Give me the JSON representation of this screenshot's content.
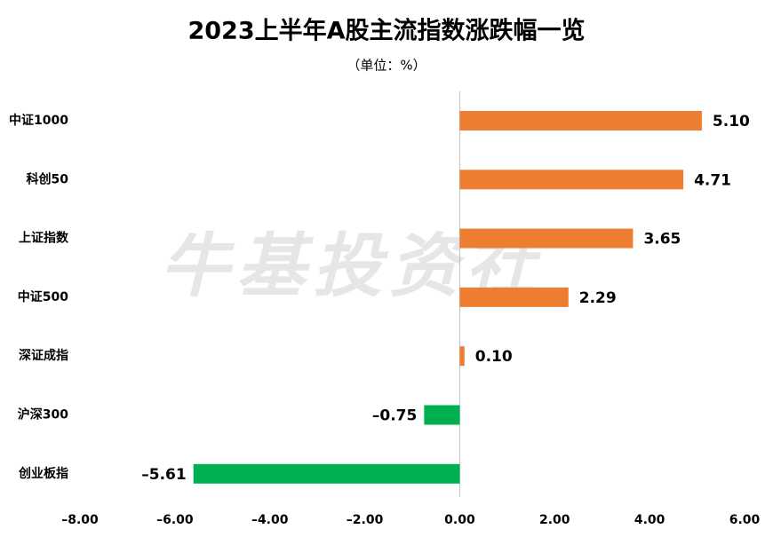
{
  "chart_data": {
    "type": "barh",
    "title": "2023上半年A股主流指数涨跌幅一览",
    "subtitle": "（单位：%）",
    "watermark": "牛基投资社",
    "categories": [
      "中证1000",
      "科创50",
      "上证指数",
      "中证500",
      "深证成指",
      "沪深300",
      "创业板指"
    ],
    "values": [
      5.1,
      4.71,
      3.65,
      2.29,
      0.1,
      -0.75,
      -5.61
    ],
    "value_labels": [
      "5.10",
      "4.71",
      "3.65",
      "2.29",
      "0.10",
      "–0.75",
      "–5.61"
    ],
    "colors": [
      "#ed7d31",
      "#ed7d31",
      "#ed7d31",
      "#ed7d31",
      "#ed7d31",
      "#00b050",
      "#00b050"
    ],
    "xlim": [
      -8,
      6
    ],
    "xticks": [
      {
        "value": -8,
        "label": "–8.00"
      },
      {
        "value": -6,
        "label": "–6.00"
      },
      {
        "value": -4,
        "label": "–4.00"
      },
      {
        "value": -2,
        "label": "–2.00"
      },
      {
        "value": 0,
        "label": "0.00"
      },
      {
        "value": 2,
        "label": "2.00"
      },
      {
        "value": 4,
        "label": "4.00"
      },
      {
        "value": 6,
        "label": "6.00"
      }
    ],
    "grid": false
  }
}
